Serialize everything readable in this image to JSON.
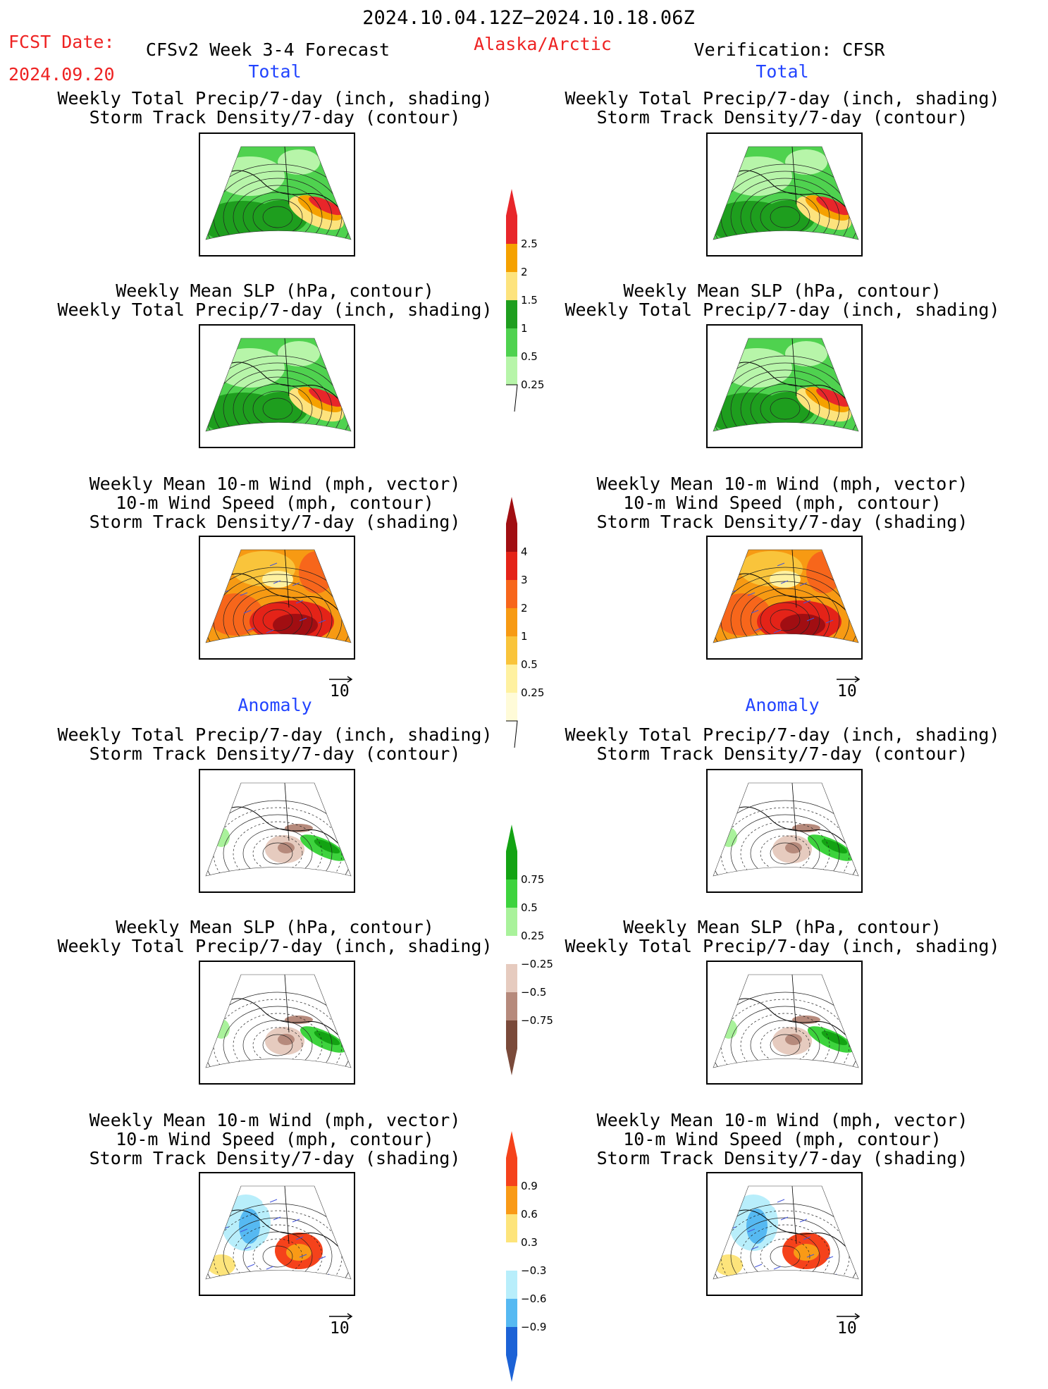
{
  "header": {
    "period": "2024.10.04.12Z−2024.10.18.06Z",
    "fcst_label": "FCST Date:",
    "fcst_date": "2024.09.20",
    "model": "CFSv2 Week 3-4 Forecast",
    "region": "Alaska/Arctic",
    "verification": "Verification: CFSR"
  },
  "sections": {
    "total": "Total",
    "anomaly": "Anomaly"
  },
  "titles": {
    "precip_storm": [
      "Weekly Total Precip/7-day (inch, shading)",
      "Storm Track Density/7-day (contour)"
    ],
    "slp_precip": [
      "Weekly Mean SLP (hPa, contour)",
      "Weekly Total Precip/7-day (inch, shading)"
    ],
    "wind_storm": [
      "Weekly Mean 10-m Wind (mph, vector)",
      "10-m Wind Speed (mph, contour)",
      "Storm Track Density/7-day (shading)"
    ]
  },
  "vector_ref": "10",
  "colorbars": {
    "precip_total": {
      "labels": [
        "2.5",
        "2",
        "1.5",
        "1",
        "0.5",
        "0.25"
      ],
      "colors": [
        "#e8262a",
        "#f5a100",
        "#fde37d",
        "#1e9e1e",
        "#4fd24f",
        "#b7f5a9"
      ]
    },
    "storm_total": {
      "labels": [
        "4",
        "3",
        "2",
        "1",
        "0.5",
        "0.25"
      ],
      "colors": [
        "#a10e12",
        "#e42318",
        "#f7661b",
        "#f79a13",
        "#f9c43b",
        "#fff1a0",
        "#fffbd8"
      ]
    },
    "precip_anom": {
      "labels": [
        "0.75",
        "0.5",
        "0.25",
        "−0.25",
        "−0.5",
        "−0.75"
      ],
      "colors": [
        "#13a313",
        "#3dd33d",
        "#a9f29b",
        "#ffffff",
        "#e6cbbf",
        "#b68a7c",
        "#7a4a3a"
      ]
    },
    "storm_anom": {
      "labels": [
        "0.9",
        "0.6",
        "0.3",
        "−0.3",
        "−0.6",
        "−0.9"
      ],
      "colors": [
        "#f5421b",
        "#f99a16",
        "#fde47b",
        "#ffffff",
        "#b8eefb",
        "#56b9f2",
        "#1c62d6"
      ]
    }
  },
  "panel_kinds": {
    "total_precip": "total precipitation with storm-track contours",
    "total_wind": "total storm track density with wind vectors",
    "anom_precip": "precipitation anomaly",
    "anom_wind": "storm track density anomaly"
  }
}
